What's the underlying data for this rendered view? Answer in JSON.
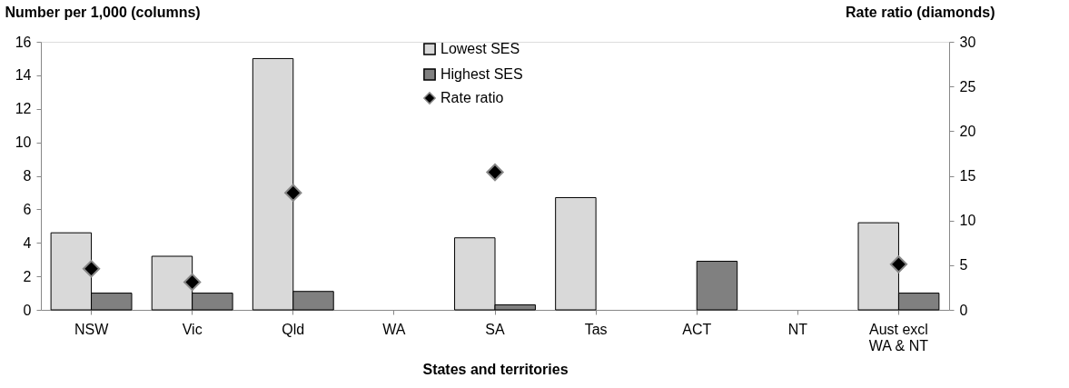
{
  "chart_data": {
    "type": "bar",
    "xlabel": "States and territories",
    "ylabel": "Number per 1,000 (columns)",
    "y2label": "Rate ratio (diamonds)",
    "categories": [
      "NSW",
      "Vic",
      "Qld",
      "WA",
      "SA",
      "Tas",
      "ACT",
      "NT",
      "Aust excl\nWA & NT"
    ],
    "series": [
      {
        "name": "Lowest SES",
        "color": "#d9d9d9",
        "values": [
          4.6,
          3.2,
          15.0,
          null,
          4.3,
          6.7,
          null,
          null,
          5.2
        ]
      },
      {
        "name": "Highest SES",
        "color": "#808080",
        "values": [
          1.0,
          1.0,
          1.1,
          null,
          0.3,
          null,
          2.9,
          null,
          1.0
        ]
      },
      {
        "name": "Rate ratio",
        "type": "scatter",
        "axis": "y2",
        "marker": "diamond",
        "color": "#000000",
        "values": [
          4.6,
          3.1,
          13.1,
          null,
          15.4,
          null,
          null,
          null,
          5.1
        ]
      }
    ],
    "ylim": [
      0,
      16
    ],
    "yticks": [
      0,
      2,
      4,
      6,
      8,
      10,
      12,
      14,
      16
    ],
    "y2lim": [
      0,
      30
    ],
    "y2ticks": [
      0,
      5,
      10,
      15,
      20,
      25,
      30
    ],
    "grid": false,
    "legend": "top"
  }
}
